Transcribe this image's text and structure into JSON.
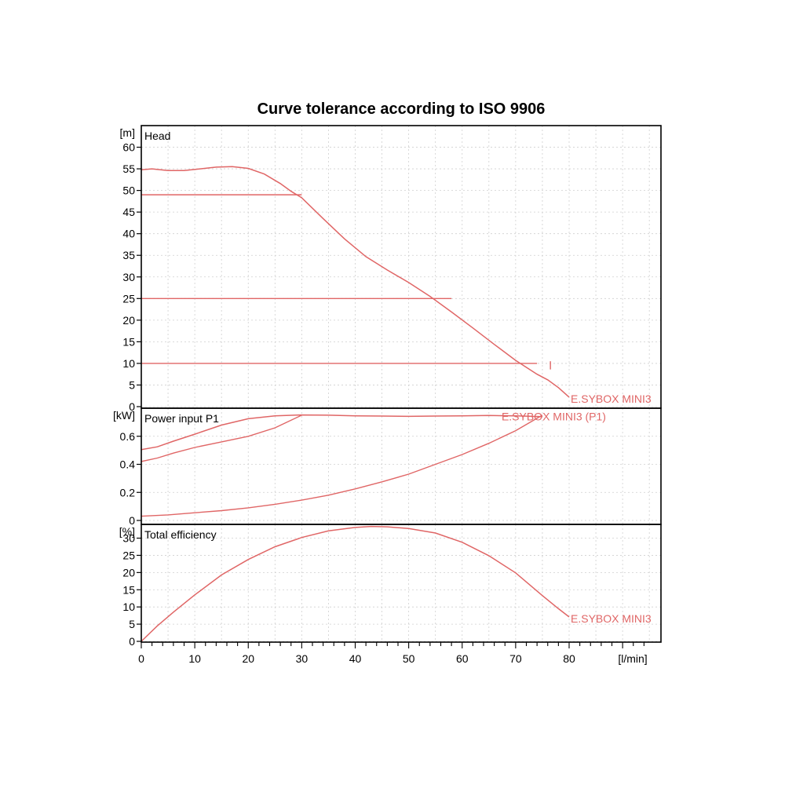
{
  "chart_data": {
    "type": "line",
    "title": "Curve tolerance according to ISO 9906",
    "series_color": "#e06666",
    "x_axis": {
      "unit": "[l/min]",
      "range": [
        0,
        80
      ],
      "ticks": [
        0,
        10,
        20,
        30,
        40,
        50,
        60,
        70,
        80
      ]
    },
    "panels": [
      {
        "id": "head",
        "label": "Head",
        "unit": "[m]",
        "ylim": [
          0,
          65
        ],
        "ticks": [
          0,
          5,
          10,
          15,
          20,
          25,
          30,
          35,
          40,
          45,
          50,
          55,
          60
        ],
        "series": [
          {
            "name": "E.SYBOX MINI3",
            "x": [
              0,
              2,
              5,
              8,
              11,
              14,
              17,
              20,
              23,
              26,
              28,
              30,
              34,
              38,
              42,
              46,
              50,
              54,
              58,
              62,
              66,
              70,
              74,
              76,
              78,
              80
            ],
            "y": [
              54.8,
              55.0,
              54.6,
              54.6,
              55.0,
              55.4,
              55.5,
              55.1,
              53.8,
              51.6,
              49.8,
              48.3,
              43.5,
              38.8,
              34.7,
              31.6,
              28.7,
              25.5,
              21.9,
              18.2,
              14.4,
              10.7,
              7.5,
              6.2,
              4.4,
              2.2
            ]
          }
        ],
        "tolerance_lines": [
          {
            "y": 49,
            "x_end": 30
          },
          {
            "y": 25,
            "x_end": 58
          },
          {
            "y": 10,
            "x_end": 74
          }
        ],
        "tick_marks": [
          {
            "x": 76.5,
            "y_from": 8.6,
            "y_to": 10.5
          }
        ]
      },
      {
        "id": "power",
        "label": "Power input P1",
        "unit": "[kW]",
        "ylim": [
          0,
          0.8
        ],
        "ticks": [
          0,
          0.2,
          0.4,
          0.6
        ],
        "series": [
          {
            "name": "E.SYBOX MINI3 (P1)",
            "x": [
              0,
              3,
              6,
              10,
              15,
              20,
              25,
              30,
              35,
              40,
              45,
              50,
              55,
              60,
              65,
              70,
              75
            ],
            "y": [
              0.505,
              0.525,
              0.565,
              0.615,
              0.68,
              0.725,
              0.745,
              0.752,
              0.75,
              0.745,
              0.744,
              0.742,
              0.744,
              0.746,
              0.748,
              0.745,
              0.74
            ]
          }
        ],
        "tolerance_curves": [
          {
            "x": [
              0,
              3,
              6,
              10,
              15,
              20,
              25,
              30
            ],
            "y": [
              0.42,
              0.445,
              0.48,
              0.52,
              0.56,
              0.6,
              0.66,
              0.75
            ]
          },
          {
            "x": [
              0,
              5,
              10,
              15,
              20,
              25,
              30,
              35,
              40,
              45,
              50,
              55,
              60,
              65,
              70,
              75
            ],
            "y": [
              0.03,
              0.04,
              0.055,
              0.07,
              0.09,
              0.115,
              0.145,
              0.18,
              0.225,
              0.275,
              0.33,
              0.4,
              0.47,
              0.55,
              0.64,
              0.75
            ]
          }
        ]
      },
      {
        "id": "efficiency",
        "label": "Total efficiency",
        "unit": "[%]",
        "ylim": [
          0,
          34
        ],
        "ticks": [
          0,
          5,
          10,
          15,
          20,
          25,
          30
        ],
        "series": [
          {
            "name": "E.SYBOX MINI3",
            "x": [
              0,
              3,
              6,
              10,
              15,
              20,
              25,
              30,
              35,
              40,
              43,
              46,
              50,
              55,
              60,
              65,
              70,
              75,
              78,
              80
            ],
            "y": [
              0,
              4.5,
              8.5,
              13.5,
              19.3,
              23.8,
              27.5,
              30.2,
              32.1,
              33.1,
              33.4,
              33.3,
              32.8,
              31.5,
              28.8,
              24.9,
              19.9,
              13.3,
              9.5,
              7.1
            ]
          }
        ]
      }
    ]
  }
}
